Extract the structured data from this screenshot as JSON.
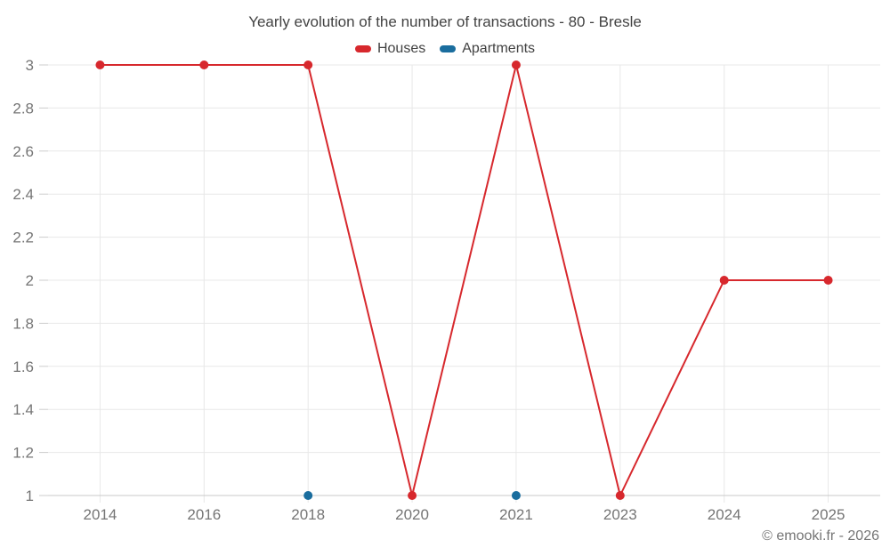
{
  "title": "Yearly evolution of the number of transactions - 80 - Bresle",
  "copyright": "© emooki.fr - 2026",
  "colors": {
    "houses": "#d7282d",
    "apartments": "#1a6d9e",
    "title_text": "#424242",
    "axis_label": "#757575",
    "gridline": "#e8e8e8",
    "axis_line": "#c9c9c9",
    "tick": "#cccccc",
    "background": "#ffffff"
  },
  "legend": [
    {
      "label": "Houses",
      "series": "Houses"
    },
    {
      "label": "Apartments",
      "series": "Apartments"
    }
  ],
  "chart_data": {
    "type": "line",
    "title": "Yearly evolution of the number of transactions - 80 - Bresle",
    "x": [
      "2014",
      "2016",
      "2018",
      "2020",
      "2021",
      "2023",
      "2024",
      "2025"
    ],
    "series": [
      {
        "name": "Houses",
        "color": "#d7282d",
        "values": [
          3,
          3,
          3,
          1,
          3,
          1,
          2,
          2
        ]
      },
      {
        "name": "Apartments",
        "color": "#1a6d9e",
        "values": [
          null,
          null,
          1,
          null,
          1,
          null,
          null,
          null
        ]
      }
    ],
    "xlabel": "",
    "ylabel": "",
    "ylim": [
      1,
      3
    ],
    "yticks": [
      1,
      1.2,
      1.4,
      1.6,
      1.8,
      2,
      2.2,
      2.4,
      2.6,
      2.8,
      3
    ],
    "grid": true,
    "legend_position": "top",
    "point_markers": true
  }
}
